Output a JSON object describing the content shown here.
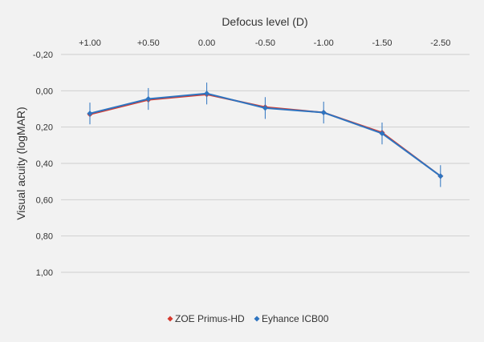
{
  "chart_data": {
    "type": "line",
    "xlabel": "Defocus level (D)",
    "ylabel": "Visual acuity (logMAR)",
    "categories": [
      "+1.00",
      "+0.50",
      "0.00",
      "-0.50",
      "-1.00",
      "-1.50",
      "-2.50"
    ],
    "ylim": [
      -0.2,
      1.0
    ],
    "y_inverted": true,
    "y_ticks": [
      "-0,20",
      "0,00",
      "0,20",
      "0,40",
      "0,60",
      "0,80",
      "1,00"
    ],
    "x_axis_position": "top",
    "grid": true,
    "legend_position": "bottom",
    "series": [
      {
        "name": "ZOE Primus-HD",
        "color": "#d63a2f",
        "marker": "diamond",
        "values": [
          0.13,
          0.05,
          0.02,
          0.09,
          0.12,
          0.23,
          0.47
        ]
      },
      {
        "name": "Eyhance ICB00",
        "color": "#2e74c0",
        "marker": "diamond",
        "values": [
          0.125,
          0.045,
          0.015,
          0.095,
          0.12,
          0.235,
          0.47
        ],
        "error": [
          0.06,
          0.06,
          0.06,
          0.06,
          0.06,
          0.06,
          0.06
        ]
      }
    ]
  }
}
